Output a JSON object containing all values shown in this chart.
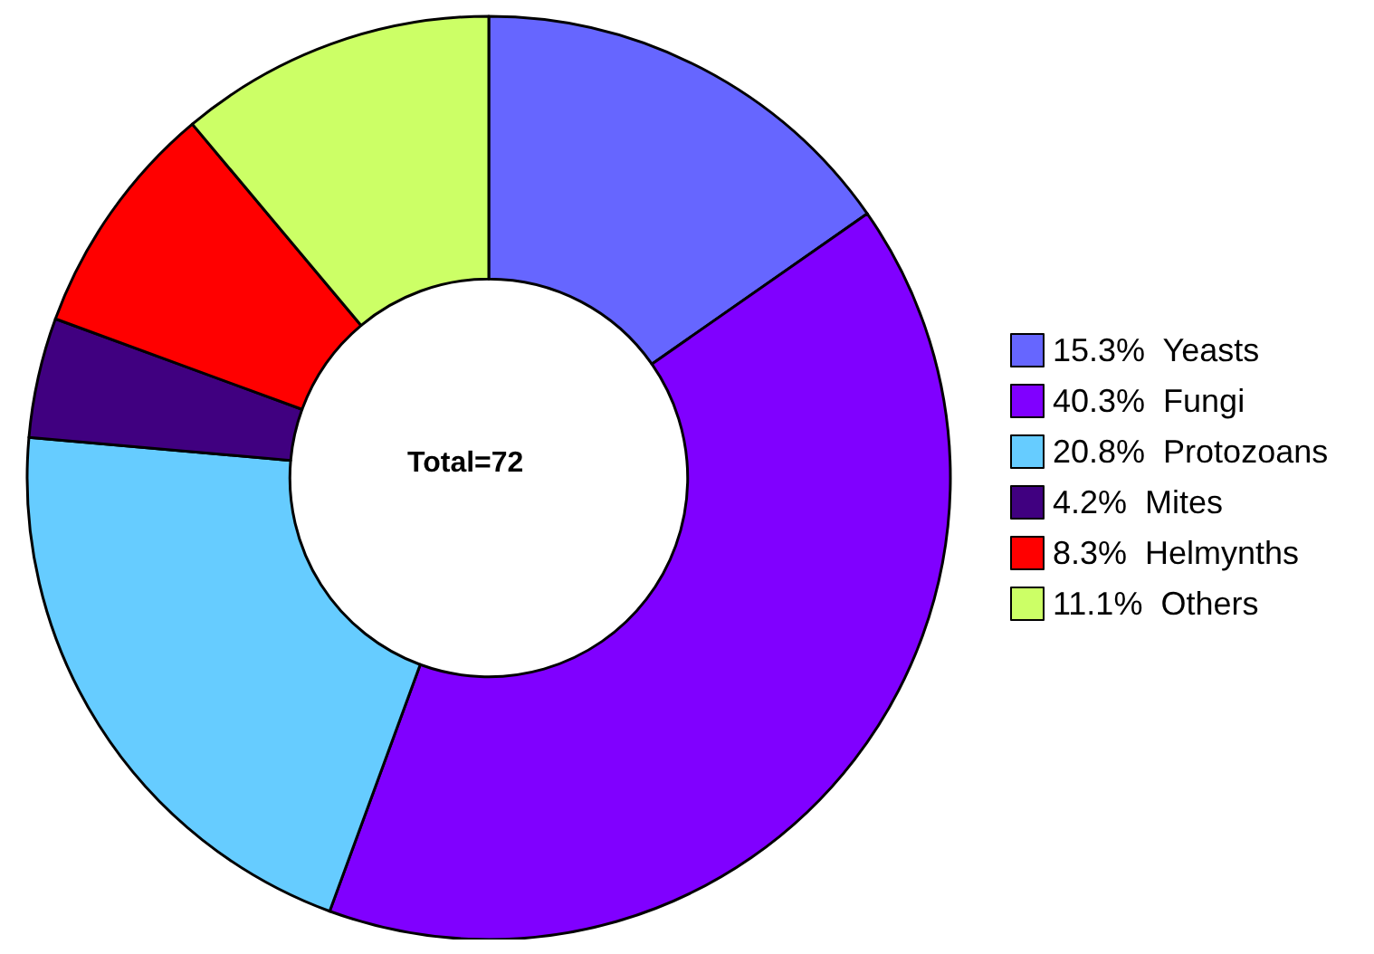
{
  "chart_data": {
    "type": "donut",
    "categories": [
      "15.3%  Yeasts",
      "40.3%  Fungi",
      "20.8%  Protozoans",
      "4.2%  Mites",
      "8.3%  Helmynths",
      "11.1%  Others"
    ],
    "values": [
      15.3,
      40.3,
      20.8,
      4.2,
      8.3,
      11.1
    ],
    "colors": [
      "#6666ff",
      "#8000ff",
      "#66ccff",
      "#400080",
      "#ff0000",
      "#ccff66"
    ],
    "legend": "right",
    "annotations": [
      "Total=72"
    ]
  }
}
